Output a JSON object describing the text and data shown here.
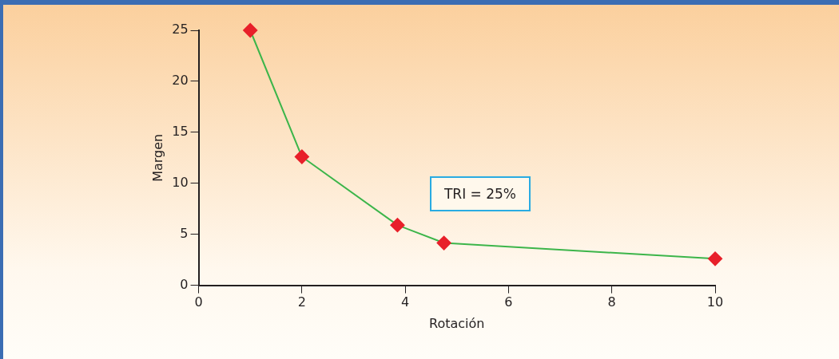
{
  "chart_data": {
    "type": "line",
    "xlabel": "Rotación",
    "ylabel": "Margen",
    "x": [
      1,
      2,
      3.85,
      4.75,
      10
    ],
    "series": [
      {
        "color": "#3cb54a",
        "colors": [
          "#e8202a",
          "#e8202a",
          "#e8202a",
          "#e8202a",
          "#e8202a"
        ],
        "values": [
          25,
          12.6,
          5.9,
          4.15,
          2.6
        ]
      }
    ],
    "xlim": [
      0,
      10
    ],
    "xticks": [
      0,
      2,
      4,
      6,
      8,
      10
    ],
    "ylim": [
      0,
      25
    ],
    "yticks": [
      0,
      5,
      10,
      15,
      20,
      25
    ],
    "grid": false,
    "legend": false,
    "marker": "diamond",
    "line_style": "solid",
    "annotations": [
      "TRI = 25%"
    ]
  }
}
